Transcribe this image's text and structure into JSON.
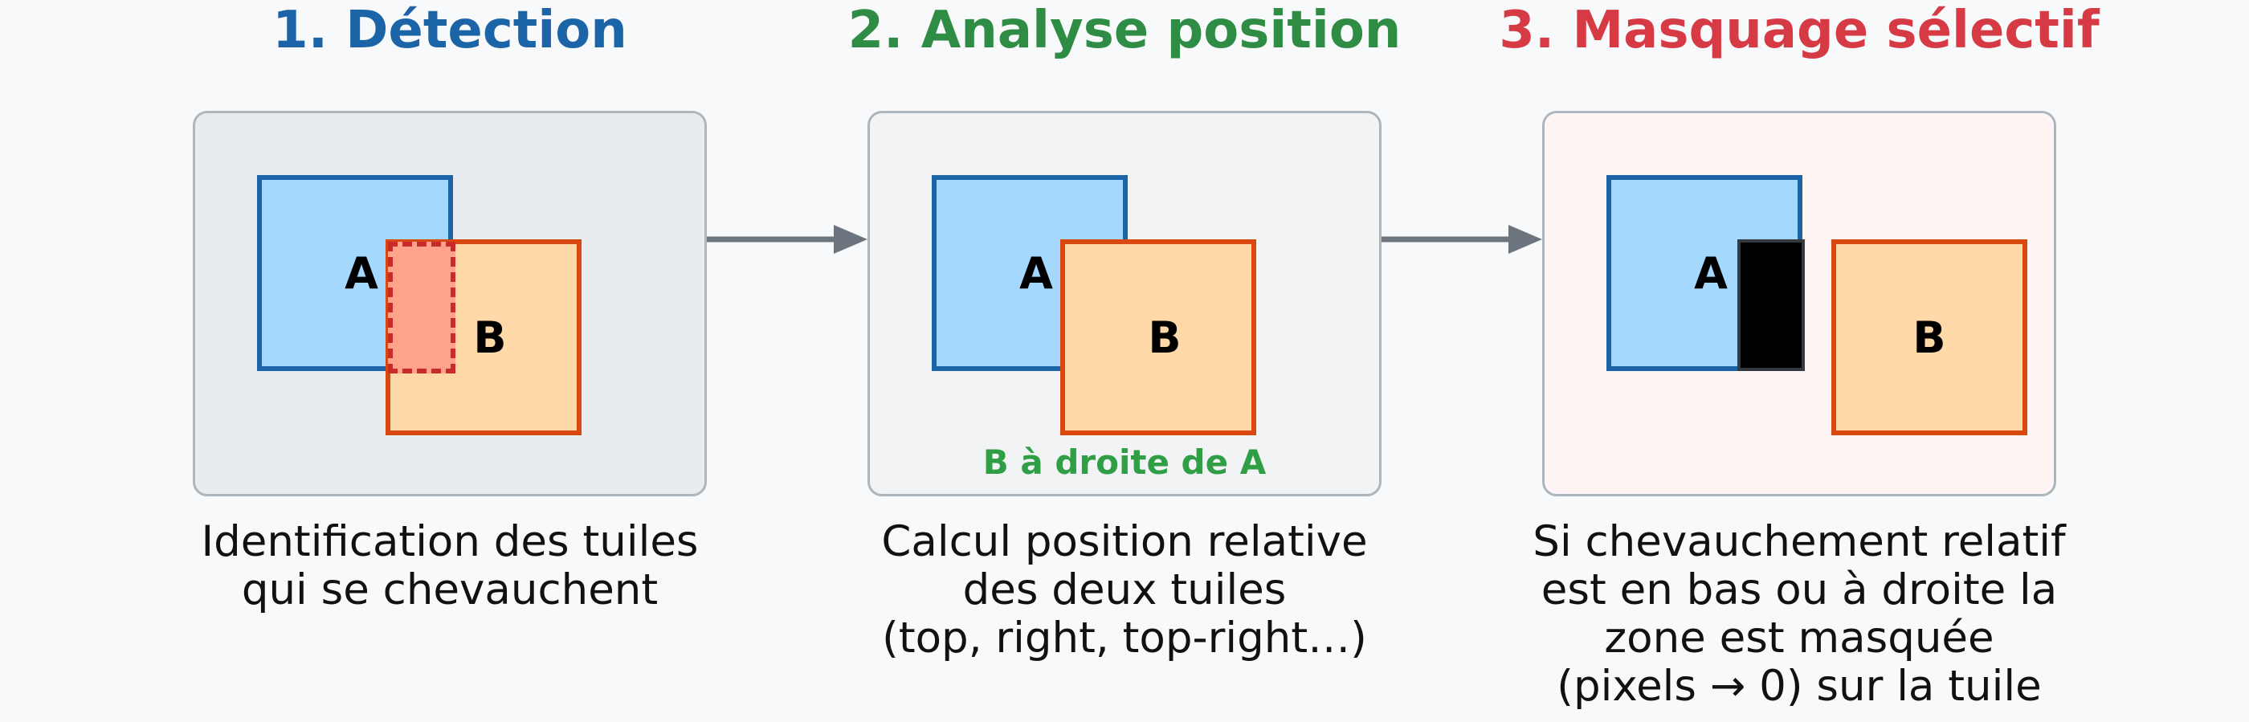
{
  "steps": [
    {
      "title": "1. Détection",
      "title_color": "#1c64a8",
      "desc": [
        "Identification des tuiles",
        "qui se chevauchent"
      ]
    },
    {
      "title": "2. Analyse position",
      "title_color": "#2f8c44",
      "desc": [
        "Calcul position relative",
        "des deux tuiles",
        "(top, right, top-right…)"
      ],
      "note": "B à droite de A",
      "note_color": "#2f9e44"
    },
    {
      "title": "3. Masquage sélectif",
      "title_color": "#d63b45",
      "desc": [
        "Si chevauchement relatif",
        "est en bas ou à droite la",
        "zone est masquée",
        "(pixels → 0) sur la tuile"
      ]
    }
  ],
  "tiles": {
    "a": "A",
    "b": "B"
  },
  "colors": {
    "panel1": "#e9ecef",
    "panel2": "#f1f3f5",
    "panel3": "#fff5f5",
    "overlap": "#ffa38a",
    "mask": "#000000",
    "arrow": "#6c757d"
  }
}
